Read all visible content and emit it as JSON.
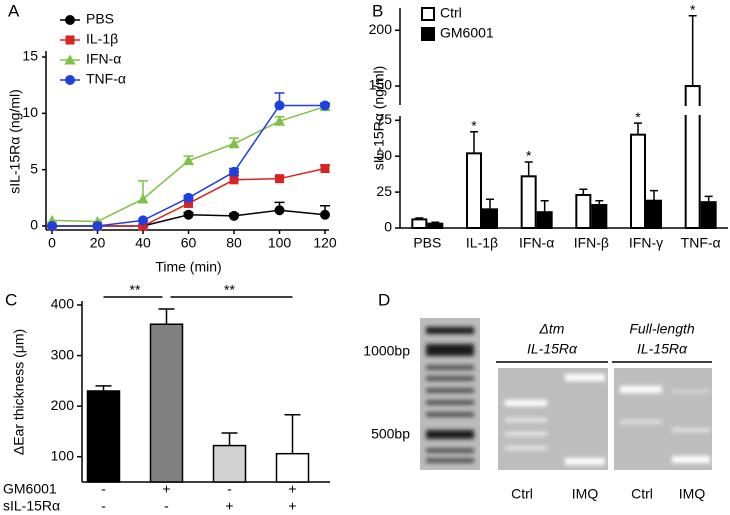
{
  "chart_data": [
    {
      "panel": "A",
      "type": "line",
      "xlabel": "Time (min)",
      "ylabel": "sIL-15Rα (ng/ml)",
      "x": [
        0,
        20,
        40,
        60,
        80,
        100,
        120
      ],
      "xlim": [
        0,
        120
      ],
      "xticks": [
        0,
        20,
        40,
        60,
        80,
        100,
        120
      ],
      "ylim": [
        0,
        15
      ],
      "yticks": [
        0,
        5,
        10,
        15
      ],
      "legend": "upper left",
      "series": [
        {
          "name": "PBS",
          "color": "#000000",
          "marker": "circle",
          "values": [
            0,
            0,
            0,
            1.0,
            0.9,
            1.4,
            1.0
          ],
          "errors": [
            null,
            null,
            null,
            0.2,
            0.2,
            0.7,
            0.8
          ]
        },
        {
          "name": "IL-1β",
          "color": "#d62424",
          "marker": "square",
          "values": [
            0,
            0,
            0,
            2.0,
            4.1,
            4.2,
            5.1
          ],
          "errors": [
            null,
            null,
            null,
            0.3,
            0.4,
            0.2,
            0.3
          ]
        },
        {
          "name": "IFN-α",
          "color": "#7dc244",
          "marker": "triangle",
          "values": [
            0.5,
            0.4,
            2.4,
            5.8,
            7.3,
            9.3,
            10.6
          ],
          "errors": [
            null,
            null,
            1.6,
            0.4,
            0.5,
            0.4,
            0.2
          ]
        },
        {
          "name": "TNF-α",
          "color": "#1f3fe0",
          "marker": "circle",
          "values": [
            0,
            0,
            0.5,
            2.5,
            4.8,
            10.7,
            10.7
          ],
          "errors": [
            null,
            null,
            null,
            0.2,
            0.3,
            1.1,
            0.2
          ]
        }
      ]
    },
    {
      "panel": "B",
      "type": "grouped-bar",
      "ylabel": "sIL-15Rα (ng/ml)",
      "categories": [
        "PBS",
        "IL-1β",
        "IFN-α",
        "IFN-β",
        "IFN-γ",
        "TNF-α"
      ],
      "ylim": [
        0,
        220
      ],
      "axis_break": [
        78,
        133
      ],
      "yticks": [
        0,
        25,
        50,
        75,
        150,
        200
      ],
      "legend": "upper left",
      "series": [
        {
          "name": "Ctrl",
          "color": "#ffffff",
          "values": [
            6,
            52,
            36,
            23,
            65,
            150
          ],
          "errors": [
            1,
            15,
            10,
            4,
            8,
            63
          ]
        },
        {
          "name": "GM6001",
          "color": "#000000",
          "values": [
            3,
            13,
            11,
            16,
            19,
            18
          ],
          "errors": [
            1,
            7,
            8,
            3,
            7,
            4
          ]
        }
      ],
      "annotations": [
        {
          "text": "*",
          "category": "IL-1β"
        },
        {
          "text": "*",
          "category": "IFN-α"
        },
        {
          "text": "*",
          "category": "IFN-γ"
        },
        {
          "text": "*",
          "category": "TNF-α"
        }
      ]
    },
    {
      "panel": "C",
      "type": "bar",
      "ylabel": "ΔEar thickness (μm)",
      "categories": [
        null,
        null,
        null,
        null
      ],
      "values": [
        230,
        362,
        122,
        106
      ],
      "errors": [
        10,
        30,
        25,
        77
      ],
      "colors": [
        "#000000",
        "#808080",
        "#d3d3d3",
        "#ffffff"
      ],
      "ylim": [
        50,
        400
      ],
      "yticks": [
        100,
        200,
        300,
        400
      ],
      "conditions": [
        {
          "name": "GM6001",
          "values": [
            "-",
            "+",
            "-",
            "+"
          ]
        },
        {
          "name": "sIL-15Rα",
          "values": [
            "-",
            "-",
            "+",
            "+"
          ]
        }
      ],
      "brackets": [
        {
          "text": "**",
          "from": 0,
          "to": 1
        },
        {
          "text": "**",
          "from": 1,
          "to": 3
        }
      ]
    }
  ],
  "gel": {
    "panel": "D",
    "markers": [
      "1000bp",
      "500bp"
    ],
    "groups": [
      {
        "title": [
          "Δtm",
          "IL-15Rα"
        ],
        "lanes": [
          "Ctrl",
          "IMQ"
        ]
      },
      {
        "title": [
          "Full-length",
          "IL-15Rα"
        ],
        "lanes": [
          "Ctrl",
          "IMQ"
        ]
      }
    ]
  }
}
